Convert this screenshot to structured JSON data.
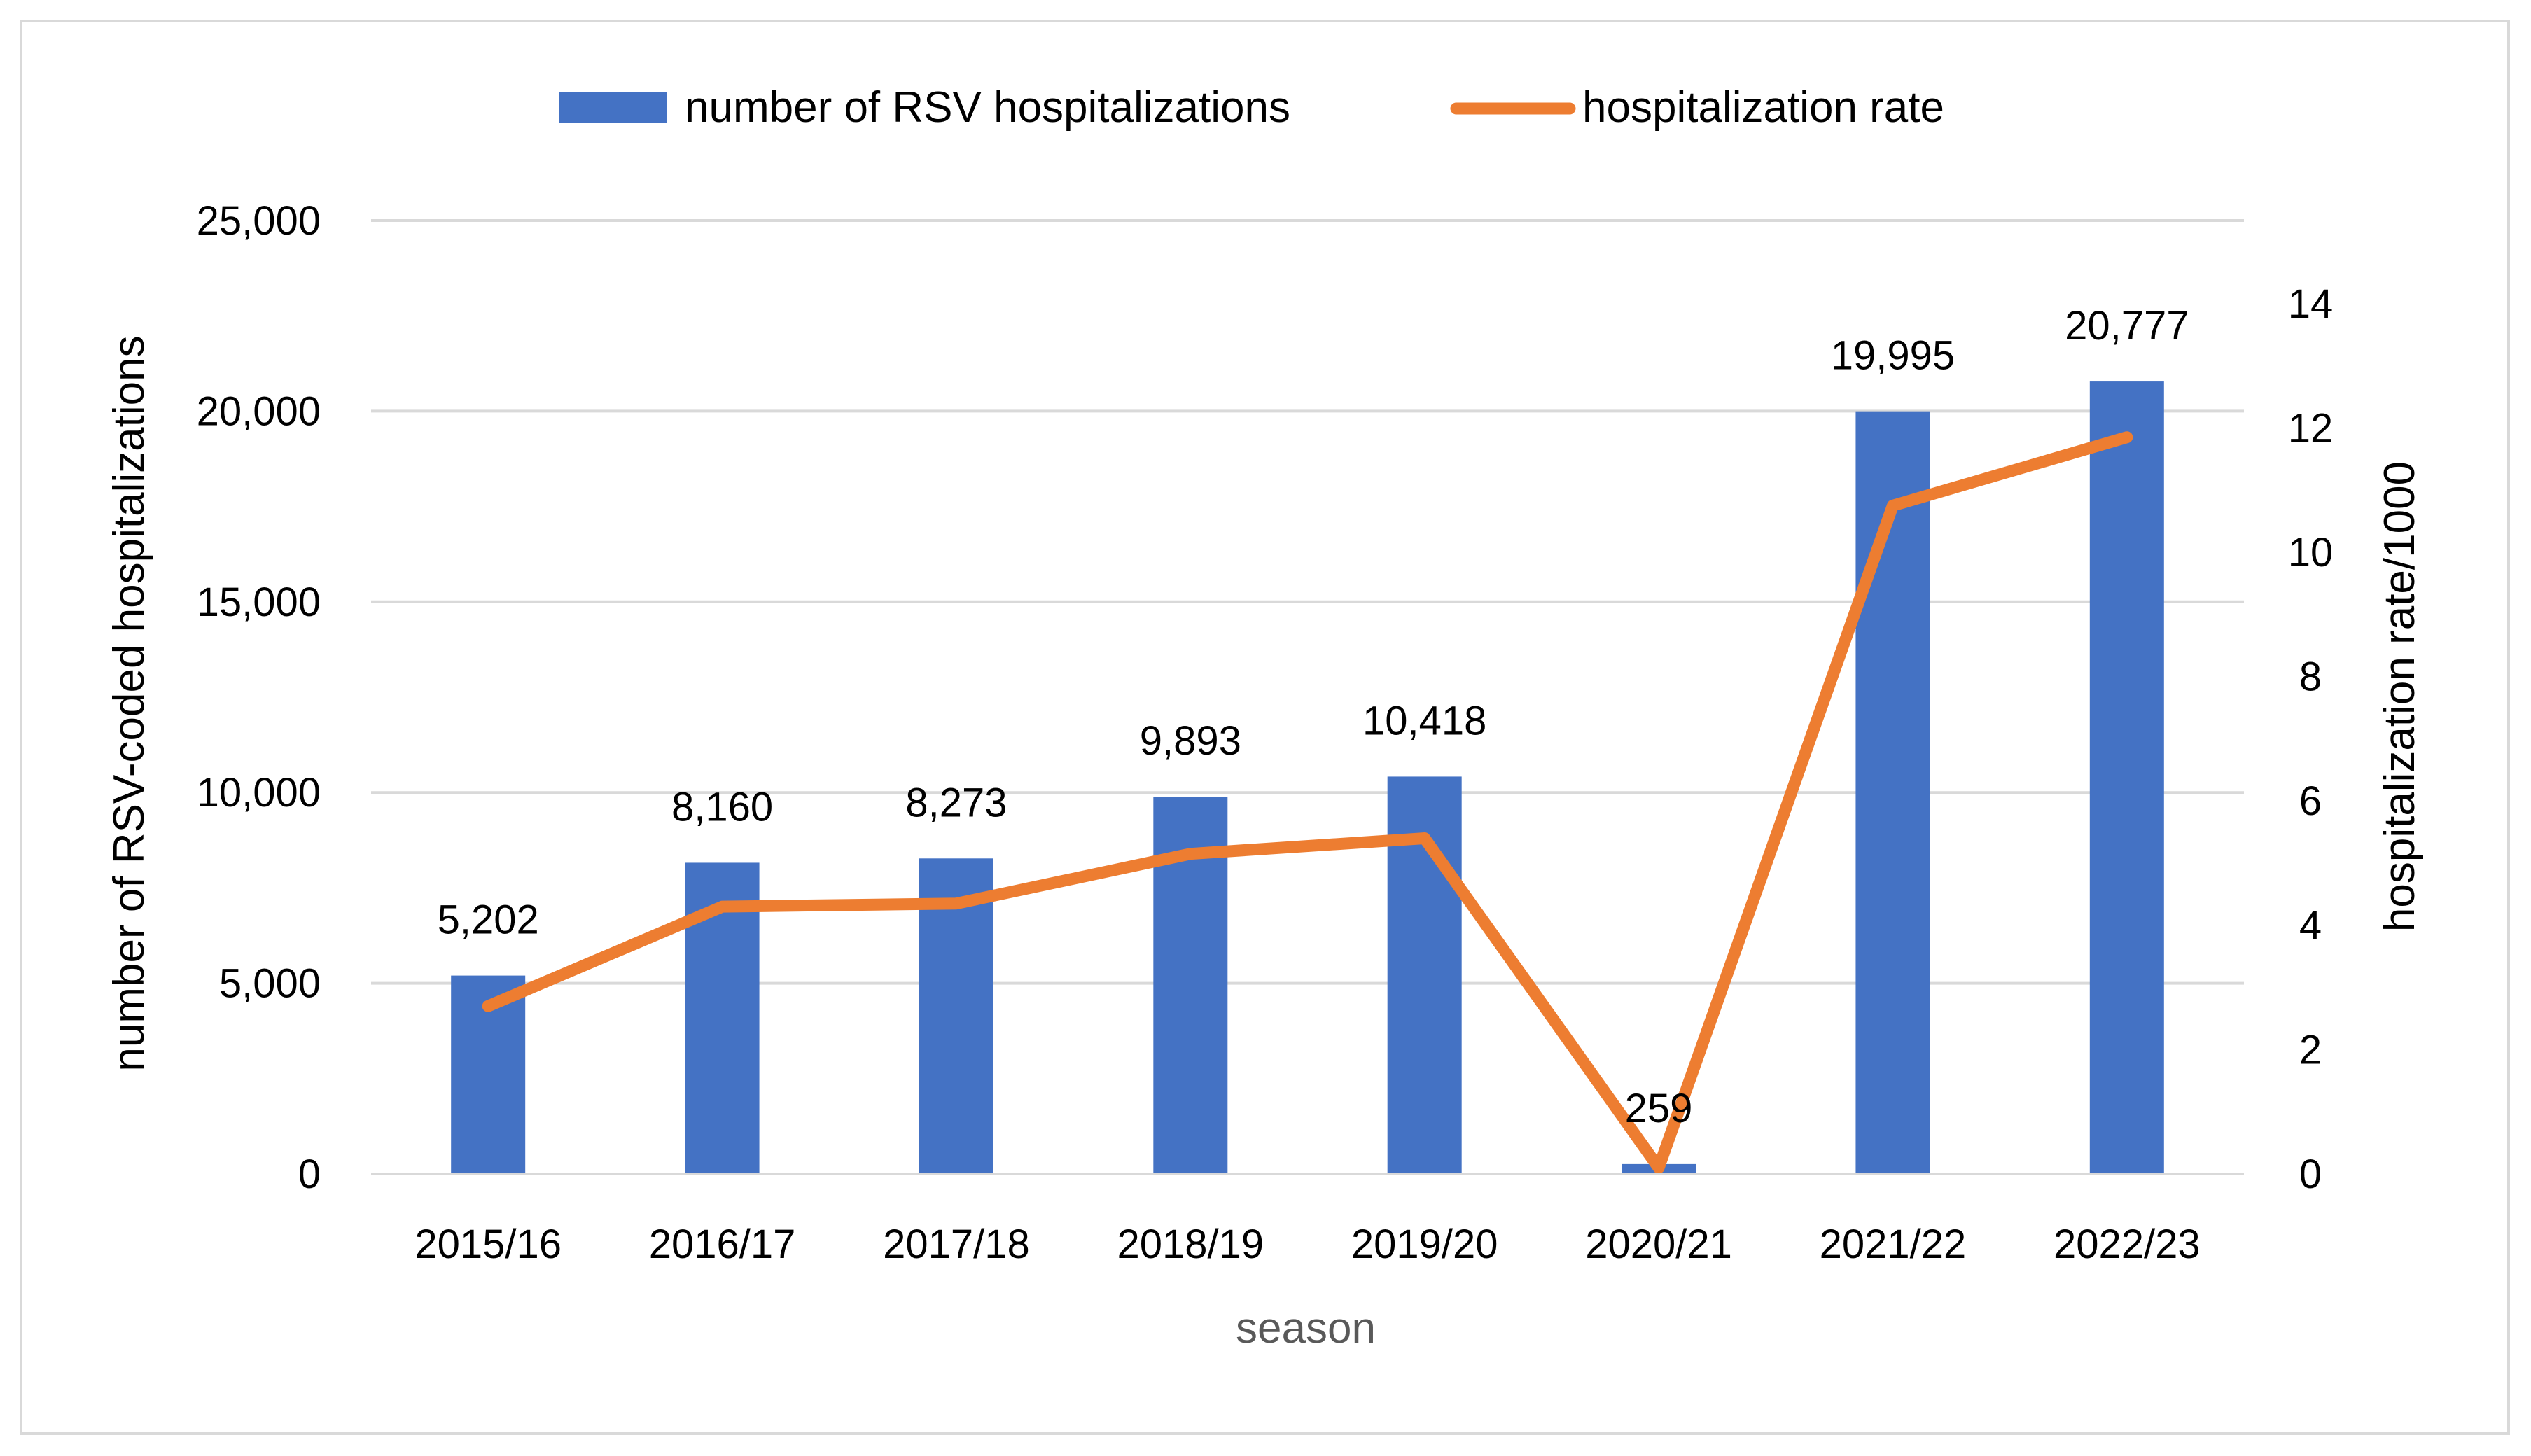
{
  "chart_data": {
    "type": "bar",
    "title": "",
    "categories": [
      "2015/16",
      "2016/17",
      "2017/18",
      "2018/19",
      "2019/20",
      "2020/21",
      "2021/22",
      "2022/23"
    ],
    "series": [
      {
        "name": "number of RSV hospitalizations",
        "kind": "bar",
        "axis": "left",
        "color": "#4472C4",
        "values": [
          5202,
          8160,
          8273,
          9893,
          10418,
          259,
          19995,
          20777
        ],
        "labels": [
          "5,202",
          "8,160",
          "8,273",
          "9,893",
          "10,418",
          "259",
          "19,995",
          "20,777"
        ]
      },
      {
        "name": "hospitalization rate",
        "kind": "line",
        "axis": "right",
        "color": "#ED7D31",
        "values": [
          2.7,
          4.3,
          4.35,
          5.15,
          5.4,
          0.1,
          10.75,
          11.85
        ]
      }
    ],
    "xlabel": "season",
    "ylabel": "number of RSV-coded hospitalizations",
    "y2label": "hospitalization rate/1000",
    "ylim": [
      0,
      25000
    ],
    "y2lim": [
      0,
      15
    ],
    "yticks": [
      0,
      5000,
      10000,
      15000,
      20000,
      25000
    ],
    "ytick_labels": [
      "0",
      "5,000",
      "10,000",
      "15,000",
      "20,000",
      "25,000"
    ],
    "y2ticks": [
      0,
      2,
      4,
      6,
      8,
      10,
      12,
      14
    ],
    "y2tick_labels": [
      "0",
      "2",
      "4",
      "6",
      "8",
      "10",
      "12",
      "14"
    ],
    "grid": true,
    "legend_position": "top-center",
    "gridline_color": "#d9d9d9"
  }
}
